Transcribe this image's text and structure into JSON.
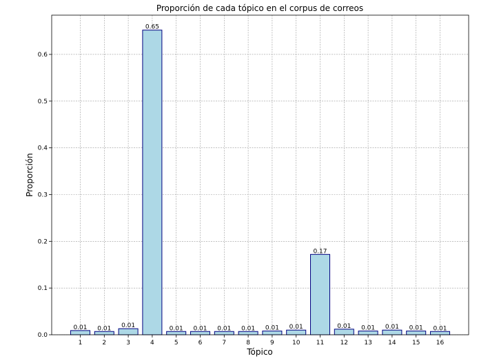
{
  "chart_data": {
    "type": "bar",
    "title": "Proporción de cada tópico en el corpus de correos",
    "xlabel": "Tópico",
    "ylabel": "Proporción",
    "categories": [
      "1",
      "2",
      "3",
      "4",
      "5",
      "6",
      "7",
      "8",
      "9",
      "10",
      "11",
      "12",
      "13",
      "14",
      "15",
      "16"
    ],
    "values": [
      0.009,
      0.007,
      0.013,
      0.652,
      0.007,
      0.007,
      0.007,
      0.007,
      0.008,
      0.01,
      0.172,
      0.012,
      0.008,
      0.01,
      0.008,
      0.007
    ],
    "data_labels": [
      "0.01",
      "0.01",
      "0.01",
      "0.65",
      "0.01",
      "0.01",
      "0.01",
      "0.01",
      "0.01",
      "0.01",
      "0.17",
      "0.01",
      "0.01",
      "0.01",
      "0.01",
      "0.01"
    ],
    "yticks": [
      "0.0",
      "0.1",
      "0.2",
      "0.3",
      "0.4",
      "0.5",
      "0.6"
    ],
    "ylim": [
      0,
      0.684
    ],
    "grid": true,
    "colors": {
      "bar_fill": "#add8e6",
      "bar_edge": "#000080"
    }
  }
}
